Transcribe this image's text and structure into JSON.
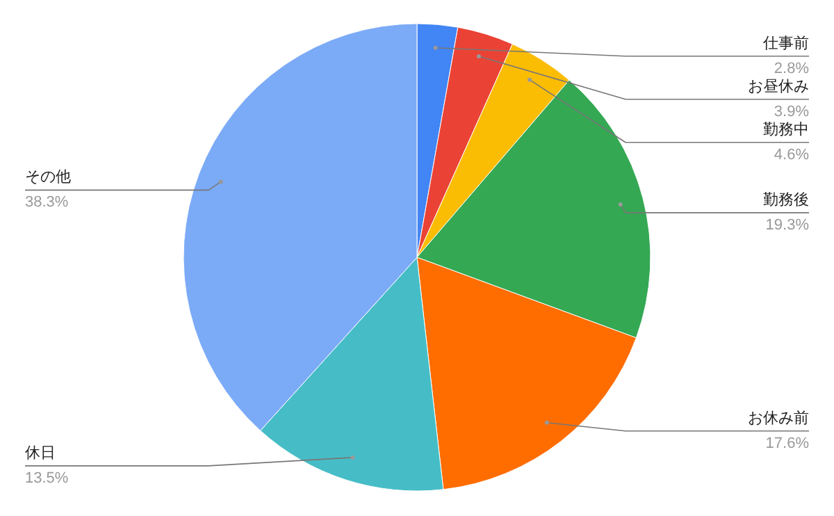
{
  "chart_data": {
    "type": "pie",
    "categories": [
      "仕事前",
      "お昼休み",
      "勤務中",
      "勤務後",
      "お休み前",
      "休日",
      "その他"
    ],
    "values": [
      2.8,
      3.9,
      4.6,
      19.3,
      17.6,
      13.5,
      38.3
    ],
    "value_labels": [
      "2.8%",
      "3.9%",
      "4.6%",
      "19.3%",
      "17.6%",
      "13.5%",
      "38.3%"
    ],
    "colors": [
      "#4285f4",
      "#ea4335",
      "#fbbc04",
      "#34a853",
      "#ff6d01",
      "#46bdc6",
      "#7baaf7"
    ]
  }
}
